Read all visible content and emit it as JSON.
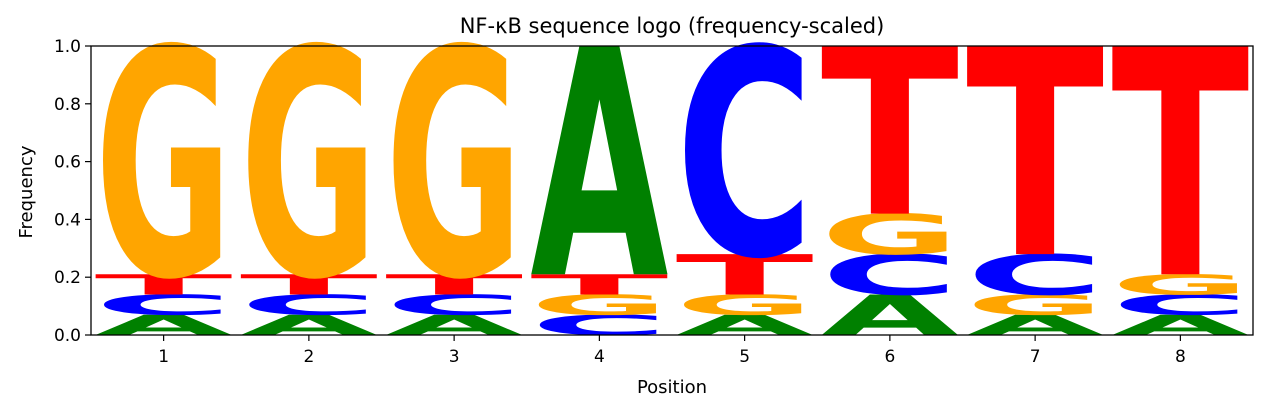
{
  "chart_data": {
    "type": "sequence-logo",
    "title": "NF-κB sequence logo (frequency-scaled)",
    "xlabel": "Position",
    "ylabel": "Frequency",
    "ylim": [
      0,
      1.0
    ],
    "yticks": [
      "0.0",
      "0.2",
      "0.4",
      "0.6",
      "0.8",
      "1.0"
    ],
    "positions": [
      "1",
      "2",
      "3",
      "4",
      "5",
      "6",
      "7",
      "8"
    ],
    "colors": {
      "A": "#008000",
      "C": "#0000ff",
      "G": "#ffa500",
      "T": "#ff0000"
    },
    "stacks": [
      [
        {
          "letter": "A",
          "freq": 0.07
        },
        {
          "letter": "C",
          "freq": 0.07
        },
        {
          "letter": "T",
          "freq": 0.07
        },
        {
          "letter": "G",
          "freq": 0.79
        }
      ],
      [
        {
          "letter": "A",
          "freq": 0.07
        },
        {
          "letter": "C",
          "freq": 0.07
        },
        {
          "letter": "T",
          "freq": 0.07
        },
        {
          "letter": "G",
          "freq": 0.79
        }
      ],
      [
        {
          "letter": "A",
          "freq": 0.07
        },
        {
          "letter": "C",
          "freq": 0.07
        },
        {
          "letter": "T",
          "freq": 0.07
        },
        {
          "letter": "G",
          "freq": 0.79
        }
      ],
      [
        {
          "letter": "C",
          "freq": 0.07
        },
        {
          "letter": "G",
          "freq": 0.07
        },
        {
          "letter": "T",
          "freq": 0.07
        },
        {
          "letter": "A",
          "freq": 0.79
        }
      ],
      [
        {
          "letter": "A",
          "freq": 0.07
        },
        {
          "letter": "G",
          "freq": 0.07
        },
        {
          "letter": "T",
          "freq": 0.14
        },
        {
          "letter": "C",
          "freq": 0.72
        }
      ],
      [
        {
          "letter": "A",
          "freq": 0.14
        },
        {
          "letter": "C",
          "freq": 0.14
        },
        {
          "letter": "G",
          "freq": 0.14
        },
        {
          "letter": "T",
          "freq": 0.58
        }
      ],
      [
        {
          "letter": "A",
          "freq": 0.07
        },
        {
          "letter": "G",
          "freq": 0.07
        },
        {
          "letter": "C",
          "freq": 0.14
        },
        {
          "letter": "T",
          "freq": 0.72
        }
      ],
      [
        {
          "letter": "A",
          "freq": 0.07
        },
        {
          "letter": "C",
          "freq": 0.07
        },
        {
          "letter": "G",
          "freq": 0.07
        },
        {
          "letter": "T",
          "freq": 0.79
        }
      ]
    ]
  }
}
